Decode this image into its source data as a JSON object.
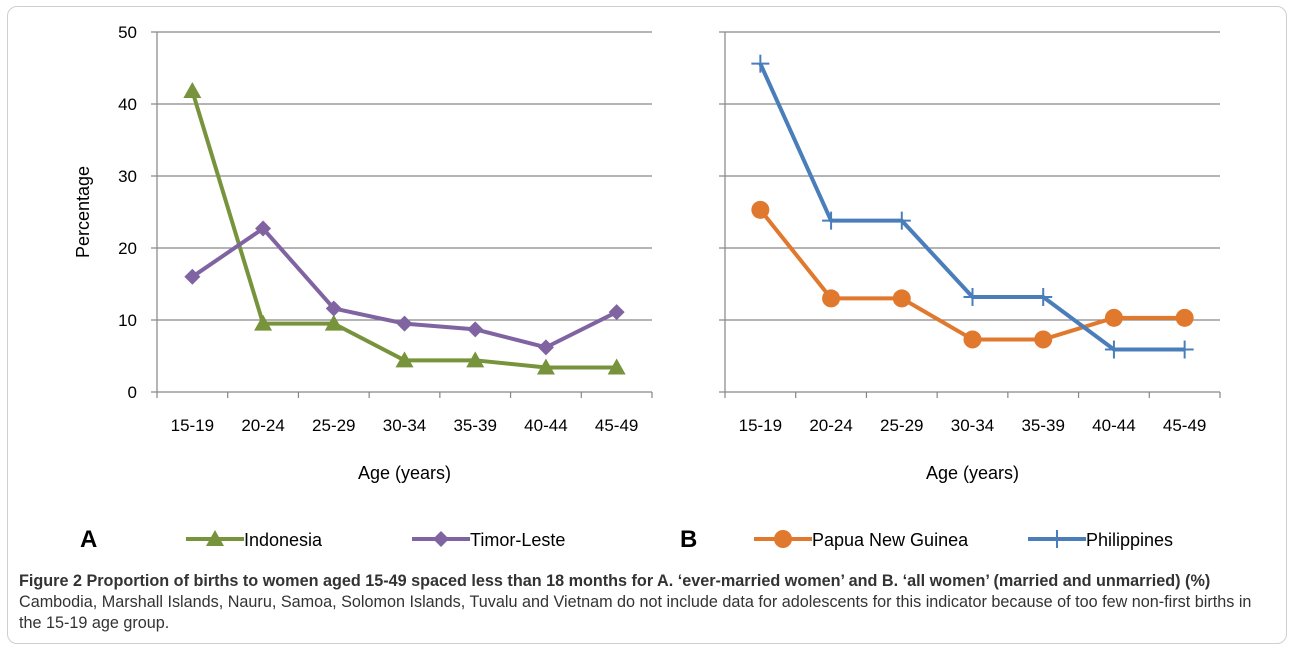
{
  "chart_data": [
    {
      "type": "line",
      "panel_label": "A",
      "categories": [
        "15-19",
        "20-24",
        "25-29",
        "30-34",
        "35-39",
        "40-44",
        "45-49"
      ],
      "xlabel": "Age (years)",
      "ylabel": "Percentage",
      "ylim": [
        0,
        50
      ],
      "yticks": [
        "0",
        "10",
        "20",
        "30",
        "40",
        "50"
      ],
      "grid": true,
      "legend_position": "bottom",
      "series": [
        {
          "name": "Indonesia",
          "color": "#77933c",
          "marker": "triangle",
          "values": [
            41.8,
            9.5,
            9.5,
            4.4,
            4.4,
            3.4,
            3.4
          ]
        },
        {
          "name": "Timor-Leste",
          "color": "#8064a2",
          "marker": "diamond",
          "values": [
            16.0,
            22.7,
            11.6,
            9.5,
            8.7,
            6.2,
            11.1
          ]
        }
      ]
    },
    {
      "type": "line",
      "panel_label": "B",
      "categories": [
        "15-19",
        "20-24",
        "25-29",
        "30-34",
        "35-39",
        "40-44",
        "45-49"
      ],
      "xlabel": "Age (years)",
      "ylabel": "",
      "ylim": [
        0,
        50
      ],
      "grid": true,
      "legend_position": "bottom",
      "series": [
        {
          "name": "Papua New Guinea",
          "color": "#e0782e",
          "marker": "circle",
          "values": [
            25.3,
            13.0,
            13.0,
            7.3,
            7.3,
            10.3,
            10.3
          ]
        },
        {
          "name": "Philippines",
          "color": "#4a7ebb",
          "marker": "plus",
          "values": [
            45.6,
            23.8,
            23.8,
            13.2,
            13.2,
            5.9,
            5.9
          ]
        }
      ]
    }
  ],
  "caption": {
    "title": "Figure 2 Proportion of births to women aged 15-49 spaced less than 18 months for A. ‘ever-married women’ and B. ‘all women’ (married and unmarried) (%)",
    "body": "Cambodia, Marshall Islands, Nauru, Samoa, Solomon Islands, Tuvalu and Vietnam do not include data for adolescents for this indicator because of too few non-first births in the 15-19 age group."
  }
}
